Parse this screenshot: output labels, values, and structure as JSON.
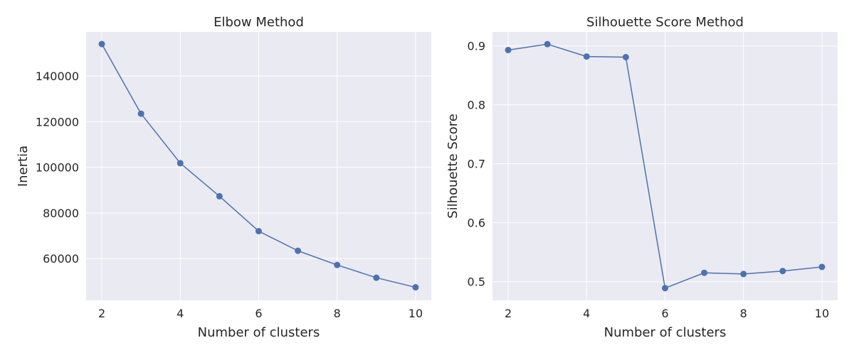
{
  "colors": {
    "series": "#4c72b0",
    "plot_background": "#eaeaf2",
    "grid": "#ffffff",
    "text": "#262626"
  },
  "chart_data": [
    {
      "type": "line",
      "title": "Elbow Method",
      "xlabel": "Number of clusters",
      "ylabel": "Inertia",
      "x": [
        2,
        3,
        4,
        5,
        6,
        7,
        8,
        9,
        10
      ],
      "series": [
        {
          "values": [
            154000,
            123500,
            101800,
            87300,
            72000,
            63400,
            57200,
            51600,
            47400
          ]
        }
      ],
      "xticks": [
        2,
        4,
        6,
        8,
        10
      ],
      "yticks": [
        60000,
        80000,
        100000,
        120000,
        140000
      ],
      "xlim": [
        1.6,
        10.4
      ],
      "ylim": [
        41700,
        159300
      ],
      "markers": true,
      "grid": true
    },
    {
      "type": "line",
      "title": "Silhouette Score Method",
      "xlabel": "Number of clusters",
      "ylabel": "Silhouette Score",
      "x": [
        2,
        3,
        4,
        5,
        6,
        7,
        8,
        9,
        10
      ],
      "series": [
        {
          "values": [
            0.893,
            0.903,
            0.882,
            0.881,
            0.489,
            0.515,
            0.513,
            0.518,
            0.525
          ]
        }
      ],
      "xticks": [
        2,
        4,
        6,
        8,
        10
      ],
      "yticks": [
        0.5,
        0.6,
        0.7,
        0.8,
        0.9
      ],
      "ytick_format": 1,
      "xlim": [
        1.6,
        10.4
      ],
      "ylim": [
        0.4683,
        0.9237
      ],
      "markers": true,
      "grid": true
    }
  ]
}
